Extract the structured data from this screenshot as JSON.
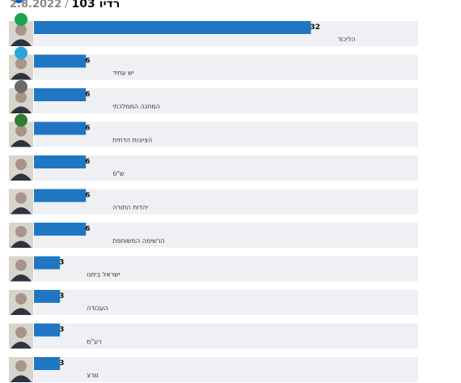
{
  "header": {
    "date": "2.8.2022",
    "separator": "/",
    "poll_name": "רדיו 103"
  },
  "chart_data": {
    "type": "bar",
    "orientation": "horizontal",
    "title": "",
    "xlabel": "",
    "ylabel": "",
    "xlim": [
      0,
      40
    ],
    "grid": false,
    "legend": "none",
    "bar_color": "#1f76c2",
    "track_color": "#eef0f4",
    "categories": [
      "הליכוד",
      "יש עתיד",
      "המחנה הממלכתי",
      "הציונות הדתית",
      "ש\"ס",
      "יהדות התורה",
      "הרשימה המשותפת",
      "ישראל ביתנו",
      "העבודה",
      "רע\"מ",
      "מרצ"
    ],
    "values": [
      32,
      6,
      6,
      6,
      6,
      6,
      6,
      3,
      3,
      3,
      3
    ],
    "logo_colors": [
      "#1da354",
      "#2aa6df",
      "#6b6b6b",
      "#2e7d32"
    ]
  }
}
